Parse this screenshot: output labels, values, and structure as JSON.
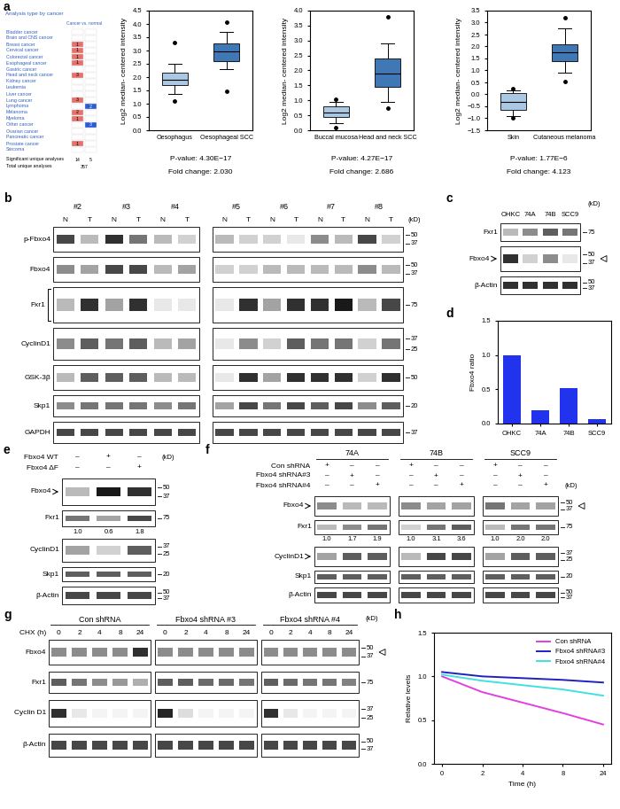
{
  "panel_labels": [
    "a",
    "b",
    "c",
    "d",
    "e",
    "f",
    "g",
    "h"
  ],
  "oncomine": {
    "title": "Analysis type by cancer",
    "column": "Cancer vs. normal",
    "colors": {
      "up": "#e8706a",
      "down": "#2a5bd7"
    },
    "rows": [
      {
        "name": "Bladder cancer",
        "up": null,
        "down": null
      },
      {
        "name": "Brain and CNS cancer",
        "up": null,
        "down": null
      },
      {
        "name": "Breast cancer",
        "up": 1,
        "down": null
      },
      {
        "name": "Cervical cancer",
        "up": 1,
        "down": null
      },
      {
        "name": "Colorectal cancer",
        "up": 1,
        "down": null
      },
      {
        "name": "Esophageal cancer",
        "up": 1,
        "down": null
      },
      {
        "name": "Gastric cancer",
        "up": null,
        "down": null
      },
      {
        "name": "Head and neck cancer",
        "up": 3,
        "down": null
      },
      {
        "name": "Kidney cancer",
        "up": null,
        "down": null
      },
      {
        "name": "Leukemia",
        "up": null,
        "down": null
      },
      {
        "name": "Liver cancer",
        "up": null,
        "down": null
      },
      {
        "name": "Lung cancer",
        "up": 3,
        "down": null
      },
      {
        "name": "Lymphoma",
        "up": null,
        "down": 2
      },
      {
        "name": "Melanoma",
        "up": 2,
        "down": null
      },
      {
        "name": "Myeloma",
        "up": 1,
        "down": null
      },
      {
        "name": "Other cancer",
        "up": null,
        "down": 3
      },
      {
        "name": "Ovarian cancer",
        "up": null,
        "down": null
      },
      {
        "name": "Pancreatic cancer",
        "up": null,
        "down": null
      },
      {
        "name": "Prostate cancer",
        "up": 1,
        "down": null
      },
      {
        "name": "Sarcoma",
        "up": null,
        "down": null
      }
    ],
    "footer": [
      {
        "name": "Significant unique analyses",
        "values": [
          14,
          5
        ]
      },
      {
        "name": "Total unique analyses",
        "values": [
          357
        ]
      }
    ]
  },
  "chart_data": [
    {
      "type": "box",
      "ylabel": "Log2 median- centered intensity",
      "categories": [
        "Oesophagus",
        "Oesophageal SCC"
      ],
      "colors": [
        "#aac8e4",
        "#3f78b5"
      ],
      "boxes": [
        {
          "whislo": 1.35,
          "q1": 1.7,
          "med": 1.9,
          "q3": 2.15,
          "whishi": 2.5,
          "fliers": [
            3.3,
            1.1
          ]
        },
        {
          "whislo": 2.3,
          "q1": 2.6,
          "med": 2.95,
          "q3": 3.25,
          "whishi": 3.7,
          "fliers": [
            4.05,
            1.45
          ]
        }
      ],
      "ylim": [
        0,
        4.5
      ],
      "yticks": [
        {
          "value": 0,
          "label": "0.0"
        },
        {
          "value": 0.5,
          "label": "0.5"
        },
        {
          "value": 1,
          "label": "1.0"
        },
        {
          "value": 1.5,
          "label": "1.5"
        },
        {
          "value": 2,
          "label": "2.0"
        },
        {
          "value": 2.5,
          "label": "2.5"
        },
        {
          "value": 3,
          "label": "3.0"
        },
        {
          "value": 3.5,
          "label": "3.5"
        },
        {
          "value": 4,
          "label": "4.0"
        },
        {
          "value": 4.5,
          "label": "4.5"
        }
      ],
      "annotations": [
        "P-value: 4.30E−17",
        "Fold change: 2.030"
      ]
    },
    {
      "type": "box",
      "ylabel": "Log2 median- centered intensity",
      "categories": [
        "Buccal mucosa",
        "Head and neck SCC"
      ],
      "colors": [
        "#aac8e4",
        "#3f78b5"
      ],
      "boxes": [
        {
          "whislo": 0.25,
          "q1": 0.45,
          "med": 0.6,
          "q3": 0.8,
          "whishi": 0.95,
          "fliers": [
            1.05,
            0.1
          ]
        },
        {
          "whislo": 0.95,
          "q1": 1.45,
          "med": 1.9,
          "q3": 2.4,
          "whishi": 2.9,
          "fliers": [
            3.8,
            0.75
          ]
        }
      ],
      "ylim": [
        0,
        4.0
      ],
      "yticks": [
        {
          "value": 0,
          "label": "0.0"
        },
        {
          "value": 0.5,
          "label": "0.5"
        },
        {
          "value": 1,
          "label": "1.0"
        },
        {
          "value": 1.5,
          "label": "1.5"
        },
        {
          "value": 2,
          "label": "2.0"
        },
        {
          "value": 2.5,
          "label": "2.5"
        },
        {
          "value": 3,
          "label": "3.0"
        },
        {
          "value": 3.5,
          "label": "3.5"
        },
        {
          "value": 4,
          "label": "4.0"
        }
      ],
      "annotations": [
        "P-value: 4.27E−17",
        "Fold change: 2.686"
      ]
    },
    {
      "type": "box",
      "ylabel": "Log2 median- centered intensity",
      "categories": [
        "Skin",
        "Cutaneous melanoma"
      ],
      "colors": [
        "#aac8e4",
        "#3f78b5"
      ],
      "boxes": [
        {
          "whislo": -0.9,
          "q1": -0.65,
          "med": -0.3,
          "q3": 0.05,
          "whishi": 0.15,
          "fliers": [
            0.25,
            -1.0
          ]
        },
        {
          "whislo": 0.9,
          "q1": 1.4,
          "med": 1.75,
          "q3": 2.1,
          "whishi": 2.75,
          "fliers": [
            3.2,
            0.55
          ]
        }
      ],
      "ylim": [
        -1.5,
        3.5
      ],
      "yticks": [
        {
          "value": -1.5,
          "label": "−1.5"
        },
        {
          "value": -1,
          "label": "−1.0"
        },
        {
          "value": -0.5,
          "label": "−0.5"
        },
        {
          "value": 0,
          "label": "0.0"
        },
        {
          "value": 0.5,
          "label": "0.5"
        },
        {
          "value": 1,
          "label": "1.0"
        },
        {
          "value": 1.5,
          "label": "1.5"
        },
        {
          "value": 2,
          "label": "2.0"
        },
        {
          "value": 2.5,
          "label": "2.5"
        },
        {
          "value": 3,
          "label": "3.0"
        },
        {
          "value": 3.5,
          "label": "3.5"
        }
      ],
      "annotations": [
        "P-value: 1.77E−6",
        "Fold change: 4.123"
      ]
    },
    {
      "type": "bar",
      "ylabel": "Fbxo4 ratio",
      "categories": [
        "OHKC",
        "74A",
        "74B",
        "SCC9"
      ],
      "values": [
        1.0,
        0.2,
        0.52,
        0.06
      ],
      "color": "#2233ee",
      "ylim": [
        0,
        1.5
      ],
      "yticks": [
        {
          "value": 0,
          "label": "0.0"
        },
        {
          "value": 0.5,
          "label": "0.5"
        },
        {
          "value": 1,
          "label": "1.0"
        },
        {
          "value": 1.5,
          "label": "1.5"
        }
      ]
    },
    {
      "type": "line",
      "xlabel": "Time (h)",
      "ylabel": "Relative levels",
      "categories": [
        "0",
        "2",
        "4",
        "8",
        "24"
      ],
      "series": [
        {
          "name": "Con shRNA",
          "color": "#e040e0",
          "values": [
            1.0,
            0.82,
            0.7,
            0.58,
            0.45
          ]
        },
        {
          "name": "Fbxo4 shRNA#3",
          "color": "#2020c0",
          "values": [
            1.05,
            1.0,
            0.98,
            0.96,
            0.93
          ]
        },
        {
          "name": "Fbxo4 shRNA#4",
          "color": "#40e0e0",
          "values": [
            1.02,
            0.95,
            0.9,
            0.85,
            0.78
          ]
        }
      ],
      "ylim": [
        0,
        1.5
      ],
      "yticks": [
        {
          "value": 0,
          "label": "0.0"
        },
        {
          "value": 0.5,
          "label": "0.5"
        },
        {
          "value": 1,
          "label": "1.0"
        },
        {
          "value": 1.5,
          "label": "1.5"
        }
      ],
      "legend": "upper right"
    }
  ],
  "blots": {
    "b": {
      "kd_label": "(kD)",
      "groups": [
        "#2",
        "#3",
        "#4",
        "#5",
        "#6",
        "#7",
        "#8"
      ],
      "lane_labels": [
        "N",
        "T",
        "N",
        "T",
        "N",
        "T",
        "N",
        "T",
        "N",
        "T",
        "N",
        "T",
        "N",
        "T"
      ],
      "rows": [
        {
          "name": "p-Fbxo4",
          "kD": [
            50,
            37
          ],
          "intensity": [
            0.8,
            0.3,
            0.9,
            0.6,
            0.3,
            0.2,
            0.3,
            0.2,
            0.2,
            0.1,
            0.5,
            0.3,
            0.8,
            0.2
          ]
        },
        {
          "name": "Fbxo4",
          "kD": [
            50,
            37
          ],
          "intensity": [
            0.5,
            0.4,
            0.8,
            0.8,
            0.3,
            0.4,
            0.2,
            0.2,
            0.3,
            0.3,
            0.3,
            0.3,
            0.5,
            0.3
          ]
        },
        {
          "name": "Fxr1",
          "kD": [
            75
          ],
          "bracket": true,
          "intensity": [
            0.3,
            0.9,
            0.4,
            0.9,
            0.1,
            0.1,
            0.1,
            0.9,
            0.4,
            0.9,
            0.9,
            1.0,
            0.3,
            0.8
          ]
        },
        {
          "name": "CyclinD1",
          "kD": [
            37,
            25
          ],
          "intensity": [
            0.5,
            0.7,
            0.6,
            0.7,
            0.3,
            0.4,
            0.1,
            0.5,
            0.2,
            0.7,
            0.6,
            0.6,
            0.2,
            0.6
          ]
        },
        {
          "name": "GSK-3β",
          "kD": [
            50
          ],
          "intensity": [
            0.3,
            0.7,
            0.7,
            0.7,
            0.3,
            0.3,
            0.1,
            0.9,
            0.4,
            0.9,
            0.9,
            0.9,
            0.2,
            0.9
          ]
        },
        {
          "name": "Skp1",
          "kD": [
            20
          ],
          "intensity": [
            0.5,
            0.6,
            0.6,
            0.6,
            0.5,
            0.6,
            0.4,
            0.8,
            0.6,
            0.8,
            0.7,
            0.8,
            0.5,
            0.7
          ]
        },
        {
          "name": "GAPDH",
          "kD": [
            37
          ],
          "intensity": [
            0.8,
            0.8,
            0.8,
            0.8,
            0.8,
            0.8,
            0.8,
            0.8,
            0.8,
            0.8,
            0.8,
            0.8,
            0.8,
            0.8
          ]
        }
      ]
    },
    "c": {
      "kd_label": "(kD)",
      "lane_labels": [
        "OHKC",
        "74A",
        "74B",
        "SCC9"
      ],
      "rows": [
        {
          "name": "Fxr1",
          "kD": [
            75
          ],
          "intensity": [
            0.3,
            0.5,
            0.7,
            0.6
          ]
        },
        {
          "name": "Fbxo4",
          "kD": [
            50,
            37
          ],
          "arrow": true,
          "open_arrow": true,
          "intensity": [
            0.9,
            0.2,
            0.5,
            0.1
          ]
        },
        {
          "name": "β-Actin",
          "kD": [
            50,
            37
          ],
          "intensity": [
            0.9,
            0.9,
            0.9,
            0.9
          ]
        }
      ]
    },
    "e": {
      "kd_label": "(kD)",
      "conditions": [
        {
          "name": "Fbxo4 WT",
          "signs": [
            "–",
            "+",
            "–"
          ]
        },
        {
          "name": "Fbxo4 ΔF",
          "signs": [
            "–",
            "–",
            "+"
          ]
        }
      ],
      "rows": [
        {
          "name": "Fbxo4",
          "kD": [
            50,
            37
          ],
          "arrow": true,
          "intensity": [
            0.3,
            1.0,
            0.9
          ]
        },
        {
          "name": "Fxr1",
          "kD": [
            75
          ],
          "intensity": [
            0.6,
            0.4,
            0.8
          ],
          "quantification": [
            1.0,
            0.6,
            1.8
          ]
        },
        {
          "name": "CyclinD1",
          "kD": [
            37,
            25
          ],
          "intensity": [
            0.4,
            0.2,
            0.7
          ]
        },
        {
          "name": "Skp1",
          "kD": [
            20
          ],
          "intensity": [
            0.7,
            0.7,
            0.7
          ]
        },
        {
          "name": "β-Actin",
          "kD": [
            50,
            37
          ],
          "intensity": [
            0.8,
            0.8,
            0.8
          ]
        }
      ]
    },
    "f": {
      "kd_label": "(kD)",
      "groups": [
        "74A",
        "74B",
        "SCC9"
      ],
      "conditions": [
        {
          "name": "Con shRNA",
          "signs": [
            "+",
            "–",
            "–",
            "+",
            "–",
            "–",
            "+",
            "–",
            "–"
          ]
        },
        {
          "name": "Fbxo4 shRNA#3",
          "signs": [
            "–",
            "+",
            "–",
            "–",
            "+",
            "–",
            "–",
            "+",
            "–"
          ]
        },
        {
          "name": "Fbxo4 shRNA#4",
          "signs": [
            "–",
            "–",
            "+",
            "–",
            "–",
            "+",
            "–",
            "–",
            "+"
          ]
        }
      ],
      "rows": [
        {
          "name": "Fbxo4",
          "kD": [
            50,
            37
          ],
          "arrow": true,
          "open_arrow": true,
          "intensity": [
            0.5,
            0.3,
            0.3,
            0.5,
            0.4,
            0.4,
            0.6,
            0.4,
            0.4
          ]
        },
        {
          "name": "Fxr1",
          "kD": [
            75
          ],
          "intensity": [
            0.3,
            0.5,
            0.6,
            0.2,
            0.6,
            0.7,
            0.3,
            0.6,
            0.6
          ],
          "quantification": [
            1.0,
            1.7,
            1.9,
            1.0,
            3.1,
            3.6,
            1.0,
            2.0,
            2.0
          ]
        },
        {
          "name": "CyclinD1",
          "kD": [
            37,
            25
          ],
          "arrow": true,
          "intensity": [
            0.4,
            0.7,
            0.7,
            0.3,
            0.8,
            0.8,
            0.4,
            0.7,
            0.7
          ]
        },
        {
          "name": "Skp1",
          "kD": [
            20
          ],
          "intensity": [
            0.7,
            0.7,
            0.7,
            0.7,
            0.7,
            0.7,
            0.7,
            0.7,
            0.7
          ]
        },
        {
          "name": "β-Actin",
          "kD": [
            50,
            37
          ],
          "intensity": [
            0.8,
            0.8,
            0.8,
            0.8,
            0.8,
            0.8,
            0.8,
            0.8,
            0.8
          ]
        }
      ]
    },
    "g": {
      "kd_label": "(kD)",
      "groups": [
        "Con shRNA",
        "Fbxo4 shRNA #3",
        "Fbxo4 shRNA #4"
      ],
      "time_label": "CHX (h)",
      "times": [
        0,
        2,
        4,
        8,
        24
      ],
      "rows": [
        {
          "name": "Fbxo4",
          "kD": [
            50,
            37
          ],
          "open_arrow": true,
          "intensity": [
            0.5,
            0.5,
            0.5,
            0.5,
            0.9,
            0.5,
            0.5,
            0.5,
            0.5,
            0.5,
            0.5,
            0.5,
            0.5,
            0.5,
            0.5
          ]
        },
        {
          "name": "Fxr1",
          "kD": [
            75
          ],
          "intensity": [
            0.7,
            0.6,
            0.5,
            0.45,
            0.35,
            0.7,
            0.7,
            0.65,
            0.65,
            0.6,
            0.7,
            0.65,
            0.6,
            0.6,
            0.55
          ]
        },
        {
          "name": "Cyclin D1",
          "kD": [
            37,
            25
          ],
          "intensity": [
            0.9,
            0.1,
            0.05,
            0.05,
            0.05,
            0.95,
            0.15,
            0.05,
            0.05,
            0.05,
            0.9,
            0.1,
            0.05,
            0.05,
            0.05
          ]
        },
        {
          "name": "β-Actin",
          "kD": [
            50,
            37
          ],
          "intensity": [
            0.8,
            0.8,
            0.8,
            0.8,
            0.8,
            0.8,
            0.8,
            0.8,
            0.8,
            0.8,
            0.8,
            0.8,
            0.8,
            0.8,
            0.8
          ]
        }
      ]
    }
  }
}
